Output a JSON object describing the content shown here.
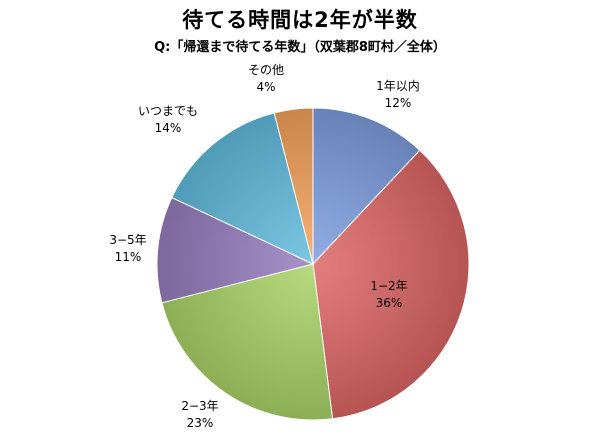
{
  "chart_data": {
    "type": "pie",
    "title": "待てる時間は2年が半数",
    "subtitle": "Q:「帰還まで待てる年数」（双葉郡8町村／全体）",
    "slices": [
      {
        "label": "1年以内",
        "value": 12,
        "display": "12%",
        "color": "#7f9ee0"
      },
      {
        "label": "1−2年",
        "value": 36,
        "display": "36%",
        "color": "#de6767"
      },
      {
        "label": "2−3年",
        "value": 23,
        "display": "23%",
        "color": "#abd468"
      },
      {
        "label": "3−5年",
        "value": 11,
        "display": "11%",
        "color": "#977fc0"
      },
      {
        "label": "いつまでも",
        "value": 14,
        "display": "14%",
        "color": "#62bddf"
      },
      {
        "label": "その他",
        "value": 4,
        "display": "4%",
        "color": "#f5a35a"
      }
    ]
  }
}
